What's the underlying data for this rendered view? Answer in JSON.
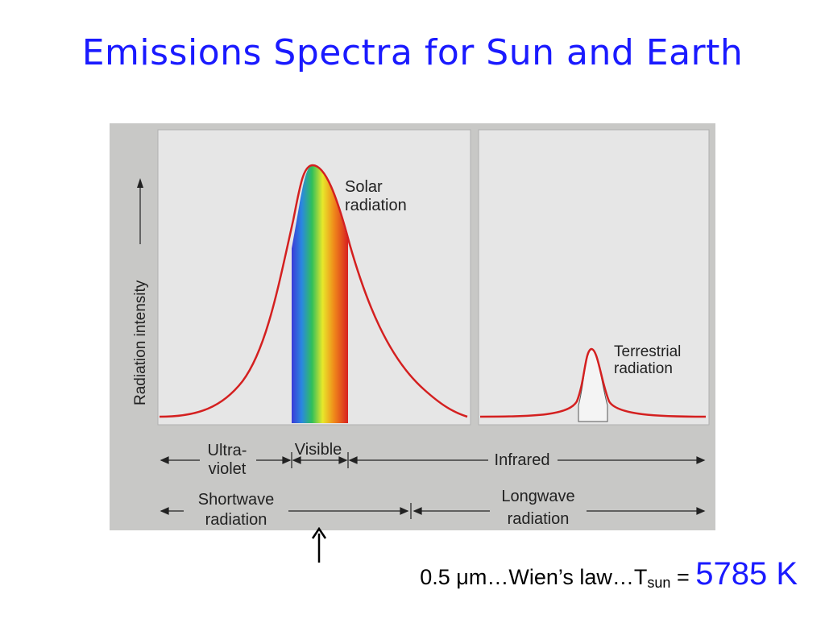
{
  "title": "Emissions Spectra for Sun and Earth",
  "figure": {
    "y_axis_label": "Radiation intensity",
    "solar_label_line1": "Solar",
    "solar_label_line2": "radiation",
    "terrestrial_label_line1": "Terrestrial",
    "terrestrial_label_line2": "radiation",
    "band_ultraviolet_line1": "Ultra-",
    "band_ultraviolet_line2": "violet",
    "band_visible": "Visible",
    "band_infrared": "Infrared",
    "band_shortwave_line1": "Shortwave",
    "band_shortwave_line2": "radiation",
    "band_longwave_line1": "Longwave",
    "band_longwave_line2": "radiation",
    "colors": {
      "curve": "#d42020",
      "panel": "#e6e6e6",
      "frame": "#c8c8c6"
    }
  },
  "caption": {
    "wavelength": "0.5 μm",
    "wien": "…Wien’s law…T",
    "subscript": "sun",
    "equals": " = ",
    "temperature": "5785 K"
  },
  "colors": {
    "title": "#1a1aff",
    "highlight": "#1a1aff"
  }
}
